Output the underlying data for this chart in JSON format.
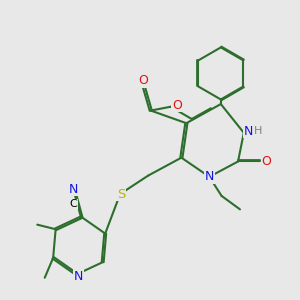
{
  "bg_color": "#e8e8e8",
  "bond_color": "#2d6e2d",
  "bond_width": 1.5,
  "dbo": 0.025,
  "atom_colors": {
    "N": "#1414e0",
    "O": "#e01414",
    "S": "#b8b800",
    "H": "#808080",
    "C": "#000000"
  }
}
